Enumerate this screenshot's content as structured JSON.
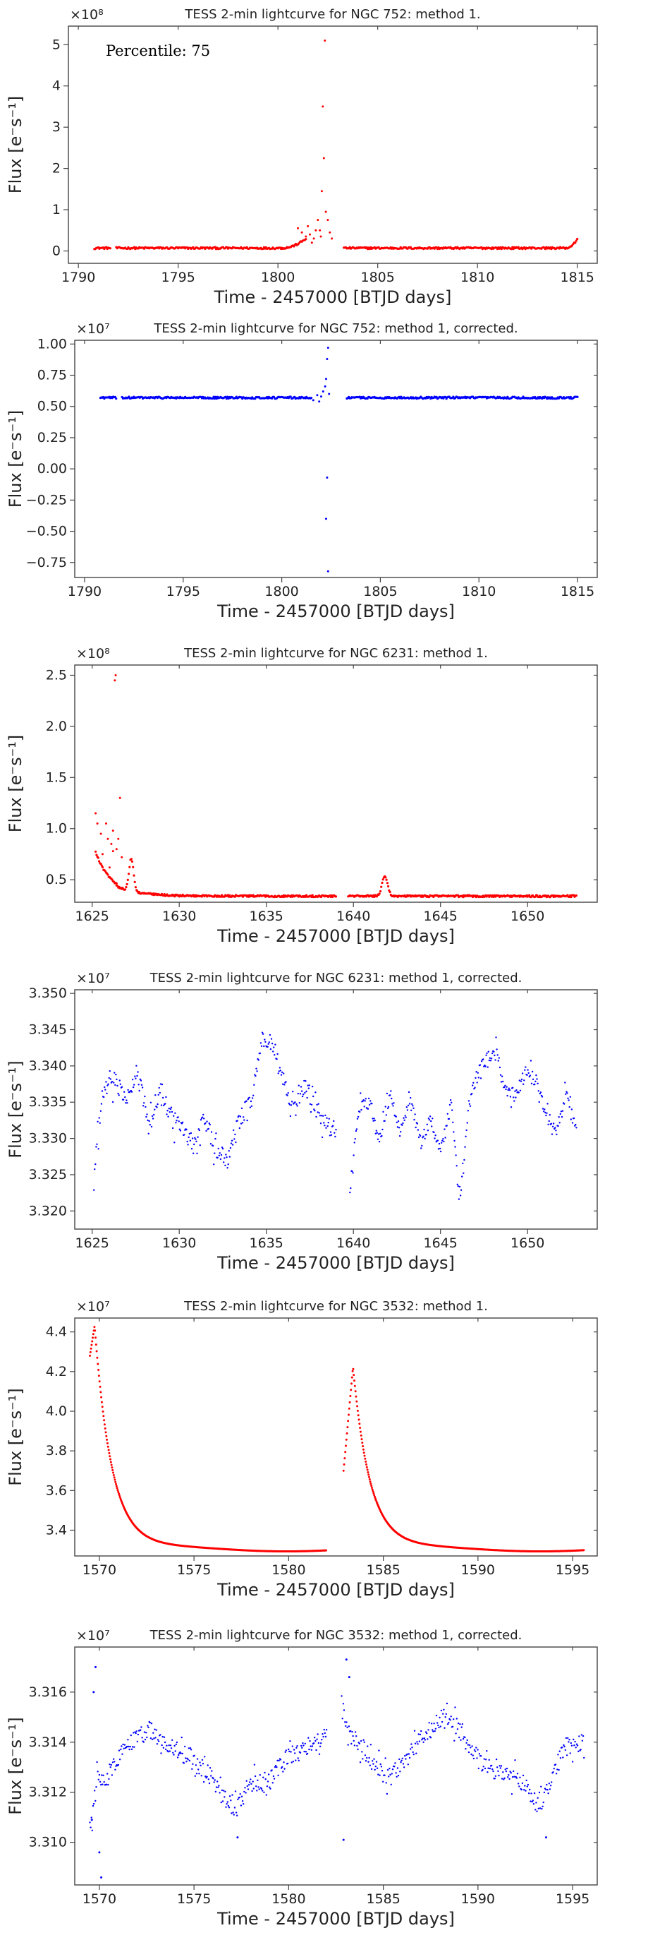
{
  "colors": {
    "method": "#ff0000",
    "corrected": "#0000ff",
    "axes": "#444444"
  },
  "chart_data": [
    {
      "type": "scatter",
      "title": "TESS 2-min lightcurve for NGC 752: method 1.",
      "xlabel": "Time - 2457000 [BTJD days]",
      "ylabel": "Flux [e⁻s⁻¹]",
      "multiplier": "×10⁸",
      "annotation": "Percentile: 75",
      "xlim": [
        1789.5,
        1816.0
      ],
      "ylim": [
        -0.3,
        5.45
      ],
      "xticks": [
        1790,
        1795,
        1800,
        1805,
        1810,
        1815
      ],
      "yticks": [
        0,
        1,
        2,
        3,
        4,
        5
      ],
      "color": "#ff0000",
      "series": [
        {
          "segments": [
            {
              "x0": 1790.8,
              "x1": 1791.6,
              "base": 0.07
            },
            {
              "x0": 1791.9,
              "x1": 1800.2,
              "base": 0.07
            },
            {
              "x0": 1800.2,
              "x1": 1801.4,
              "base": 0.07,
              "rise": 0.23
            },
            {
              "x0": 1803.3,
              "x1": 1814.4,
              "base": 0.07
            },
            {
              "x0": 1814.4,
              "x1": 1815.0,
              "base": 0.07,
              "rise": 0.2
            }
          ],
          "points": [
            [
              1801.0,
              0.55
            ],
            [
              1801.2,
              0.45
            ],
            [
              1801.4,
              0.35
            ],
            [
              1801.5,
              0.6
            ],
            [
              1801.6,
              0.4
            ],
            [
              1801.8,
              0.3
            ],
            [
              1801.9,
              0.5
            ],
            [
              1802.0,
              0.75
            ],
            [
              1802.1,
              0.5
            ],
            [
              1802.2,
              1.45
            ],
            [
              1802.25,
              3.5
            ],
            [
              1802.3,
              2.25
            ],
            [
              1802.35,
              5.1
            ],
            [
              1802.4,
              0.95
            ],
            [
              1802.5,
              0.75
            ],
            [
              1802.6,
              0.45
            ],
            [
              1802.7,
              0.3
            ],
            [
              1801.7,
              0.2
            ],
            [
              1802.15,
              0.35
            ]
          ]
        }
      ]
    },
    {
      "type": "scatter",
      "title": "TESS 2-min lightcurve for NGC 752: method 1, corrected.",
      "xlabel": "Time - 2457000 [BTJD days]",
      "ylabel": "Flux [e⁻s⁻¹]",
      "multiplier": "×10⁷",
      "xlim": [
        1789.5,
        1816.0
      ],
      "ylim": [
        -0.87,
        1.03
      ],
      "xticks": [
        1790,
        1795,
        1800,
        1805,
        1810,
        1815
      ],
      "yticks": [
        -0.75,
        -0.5,
        -0.25,
        0.0,
        0.25,
        0.5,
        0.75,
        1.0
      ],
      "ytick_labels": [
        "−0.75",
        "−0.50",
        "−0.25",
        "0.00",
        "0.25",
        "0.50",
        "0.75",
        "1.00"
      ],
      "color": "#0000ff",
      "series": [
        {
          "segments": [
            {
              "x0": 1790.8,
              "x1": 1791.6,
              "base": 0.57
            },
            {
              "x0": 1791.9,
              "x1": 1801.5,
              "base": 0.57
            },
            {
              "x0": 1803.3,
              "x1": 1815.0,
              "base": 0.57
            }
          ],
          "points": [
            [
              1801.6,
              0.55
            ],
            [
              1801.8,
              0.59
            ],
            [
              1802.0,
              0.58
            ],
            [
              1802.1,
              0.62
            ],
            [
              1802.2,
              0.66
            ],
            [
              1802.25,
              0.72
            ],
            [
              1802.3,
              0.88
            ],
            [
              1802.35,
              0.97
            ],
            [
              1802.3,
              -0.07
            ],
            [
              1802.25,
              -0.4
            ],
            [
              1802.35,
              -0.82
            ],
            [
              1802.4,
              0.6
            ],
            [
              1801.9,
              0.54
            ]
          ]
        }
      ]
    },
    {
      "type": "scatter",
      "title": "TESS 2-min lightcurve for NGC 6231: method 1.",
      "xlabel": "Time - 2457000 [BTJD days]",
      "ylabel": "Flux [e⁻s⁻¹]",
      "multiplier": "×10⁸",
      "xlim": [
        1624.0,
        1654.0
      ],
      "ylim": [
        0.28,
        2.6
      ],
      "xticks": [
        1625,
        1630,
        1635,
        1640,
        1645,
        1650
      ],
      "yticks": [
        0.5,
        1.0,
        1.5,
        2.0,
        2.5
      ],
      "ytick_labels": [
        "0.5",
        "1.0",
        "1.5",
        "2.0",
        "2.5"
      ],
      "color": "#ff0000",
      "series": [
        {
          "segments": [
            {
              "x0": 1625.2,
              "x1": 1626.4,
              "base": 0.35,
              "decay": 0.42,
              "tau": 0.9
            },
            {
              "x0": 1626.4,
              "x1": 1639.0,
              "base": 0.34,
              "decay": 0.1,
              "tau": 1.2,
              "bump": {
                "c": 1627.25,
                "a": 0.32,
                "w": 0.18
              }
            },
            {
              "x0": 1639.7,
              "x1": 1652.8,
              "base": 0.34,
              "bump": {
                "c": 1641.8,
                "a": 0.2,
                "w": 0.22
              }
            }
          ],
          "points": [
            [
              1625.2,
              1.15
            ],
            [
              1625.3,
              1.05
            ],
            [
              1625.5,
              0.95
            ],
            [
              1625.8,
              1.05
            ],
            [
              1625.9,
              0.9
            ],
            [
              1626.1,
              0.85
            ],
            [
              1626.2,
              0.98
            ],
            [
              1626.3,
              2.45
            ],
            [
              1626.35,
              2.5
            ],
            [
              1626.2,
              0.78
            ],
            [
              1626.4,
              0.8
            ],
            [
              1626.6,
              1.3
            ],
            [
              1626.5,
              0.9
            ],
            [
              1626.7,
              0.72
            ],
            [
              1626.0,
              0.62
            ],
            [
              1625.6,
              0.75
            ]
          ]
        }
      ]
    },
    {
      "type": "scatter",
      "title": "TESS 2-min lightcurve for NGC 6231: method 1, corrected.",
      "xlabel": "Time - 2457000 [BTJD days]",
      "ylabel": "Flux [e⁻s⁻¹]",
      "multiplier": "×10⁷",
      "xlim": [
        1624.0,
        1654.0
      ],
      "ylim": [
        3.3175,
        3.3505
      ],
      "xticks": [
        1625,
        1630,
        1635,
        1640,
        1645,
        1650
      ],
      "yticks": [
        3.32,
        3.325,
        3.33,
        3.335,
        3.34,
        3.345,
        3.35
      ],
      "ytick_labels": [
        "3.320",
        "3.325",
        "3.330",
        "3.335",
        "3.340",
        "3.345",
        "3.350"
      ],
      "color": "#0000ff",
      "series": [
        {
          "segments": [
            {
              "x0": 1625.1,
              "x1": 1639.0,
              "n": 320,
              "noise": 0.0022,
              "knots": [
                [
                  1625.1,
                  3.325
                ],
                [
                  1625.6,
                  3.336
                ],
                [
                  1626.2,
                  3.338
                ],
                [
                  1627.0,
                  3.336
                ],
                [
                  1627.6,
                  3.339
                ],
                [
                  1628.3,
                  3.332
                ],
                [
                  1628.9,
                  3.337
                ],
                [
                  1629.5,
                  3.333
                ],
                [
                  1630.2,
                  3.331
                ],
                [
                  1630.8,
                  3.329
                ],
                [
                  1631.4,
                  3.333
                ],
                [
                  1632.2,
                  3.328
                ],
                [
                  1632.8,
                  3.327
                ],
                [
                  1633.4,
                  3.332
                ],
                [
                  1634.2,
                  3.336
                ],
                [
                  1634.8,
                  3.344
                ],
                [
                  1635.4,
                  3.343
                ],
                [
                  1636.0,
                  3.337
                ],
                [
                  1636.6,
                  3.335
                ],
                [
                  1637.3,
                  3.337
                ],
                [
                  1637.9,
                  3.334
                ],
                [
                  1638.5,
                  3.332
                ],
                [
                  1639.0,
                  3.331
                ]
              ]
            },
            {
              "x0": 1639.8,
              "x1": 1652.8,
              "n": 300,
              "noise": 0.0016,
              "knots": [
                [
                  1639.8,
                  3.323
                ],
                [
                  1640.3,
                  3.334
                ],
                [
                  1640.9,
                  3.335
                ],
                [
                  1641.5,
                  3.33
                ],
                [
                  1642.1,
                  3.336
                ],
                [
                  1642.7,
                  3.331
                ],
                [
                  1643.3,
                  3.335
                ],
                [
                  1643.9,
                  3.329
                ],
                [
                  1644.4,
                  3.333
                ],
                [
                  1645.0,
                  3.328
                ],
                [
                  1645.6,
                  3.335
                ],
                [
                  1646.1,
                  3.321
                ],
                [
                  1646.6,
                  3.334
                ],
                [
                  1647.1,
                  3.339
                ],
                [
                  1647.7,
                  3.341
                ],
                [
                  1648.2,
                  3.342
                ],
                [
                  1648.7,
                  3.337
                ],
                [
                  1649.3,
                  3.336
                ],
                [
                  1649.9,
                  3.339
                ],
                [
                  1650.5,
                  3.338
                ],
                [
                  1651.1,
                  3.333
                ],
                [
                  1651.7,
                  3.331
                ],
                [
                  1652.2,
                  3.336
                ],
                [
                  1652.8,
                  3.331
                ]
              ]
            }
          ]
        }
      ]
    },
    {
      "type": "scatter",
      "title": "TESS 2-min lightcurve for NGC 3532: method 1.",
      "xlabel": "Time - 2457000 [BTJD days]",
      "ylabel": "Flux [e⁻s⁻¹]",
      "multiplier": "×10⁷",
      "xlim": [
        1568.7,
        1596.3
      ],
      "ylim": [
        3.27,
        4.47
      ],
      "xticks": [
        1570,
        1575,
        1580,
        1585,
        1590,
        1595
      ],
      "yticks": [
        3.4,
        3.6,
        3.8,
        4.0,
        4.2,
        4.4
      ],
      "ytick_labels": [
        "3.4",
        "3.6",
        "3.8",
        "4.0",
        "4.2",
        "4.4"
      ],
      "color": "#ff0000",
      "series": [
        {
          "segments": [
            {
              "x0": 1569.5,
              "x1": 1582.0,
              "kind": "peak",
              "peak_x": 1569.75,
              "peak": 4.43,
              "start": 4.28,
              "base": 3.305,
              "tau": 0.9,
              "wave": 0.012
            },
            {
              "x0": 1582.9,
              "x1": 1595.6,
              "kind": "peak",
              "peak_x": 1583.4,
              "peak": 4.22,
              "start": 3.7,
              "base": 3.305,
              "tau": 0.9,
              "wave": 0.012
            }
          ]
        }
      ]
    },
    {
      "type": "scatter",
      "title": "TESS 2-min lightcurve for NGC 3532: method 1, corrected.",
      "xlabel": "Time - 2457000 [BTJD days]",
      "ylabel": "Flux [e⁻s⁻¹]",
      "multiplier": "×10⁷",
      "xlim": [
        1568.7,
        1596.3
      ],
      "ylim": [
        3.3083,
        3.3178
      ],
      "xticks": [
        1570,
        1575,
        1580,
        1585,
        1590,
        1595
      ],
      "yticks": [
        3.31,
        3.312,
        3.314,
        3.316
      ],
      "ytick_labels": [
        "3.310",
        "3.312",
        "3.314",
        "3.316"
      ],
      "color": "#0000ff",
      "series": [
        {
          "segments": [
            {
              "x0": 1569.5,
              "x1": 1582.0,
              "n": 300,
              "noise": 0.0006,
              "knots": [
                [
                  1569.5,
                  3.3105
                ],
                [
                  1569.9,
                  3.3125
                ],
                [
                  1570.5,
                  3.3125
                ],
                [
                  1571.2,
                  3.3138
                ],
                [
                  1572.0,
                  3.3142
                ],
                [
                  1572.8,
                  3.3145
                ],
                [
                  1573.5,
                  3.3139
                ],
                [
                  1574.3,
                  3.3136
                ],
                [
                  1575.0,
                  3.3133
                ],
                [
                  1575.8,
                  3.3127
                ],
                [
                  1576.5,
                  3.3118
                ],
                [
                  1577.2,
                  3.3113
                ],
                [
                  1578.0,
                  3.3124
                ],
                [
                  1578.8,
                  3.3123
                ],
                [
                  1579.6,
                  3.3131
                ],
                [
                  1580.3,
                  3.3136
                ],
                [
                  1581.0,
                  3.3138
                ],
                [
                  1582.0,
                  3.3142
                ]
              ]
            },
            {
              "x0": 1582.8,
              "x1": 1595.6,
              "n": 300,
              "noise": 0.0006,
              "knots": [
                [
                  1582.8,
                  3.3155
                ],
                [
                  1583.3,
                  3.3143
                ],
                [
                  1583.9,
                  3.3138
                ],
                [
                  1584.6,
                  3.313
                ],
                [
                  1585.3,
                  3.3125
                ],
                [
                  1586.0,
                  3.3131
                ],
                [
                  1586.7,
                  3.3138
                ],
                [
                  1587.4,
                  3.3145
                ],
                [
                  1588.1,
                  3.315
                ],
                [
                  1588.8,
                  3.3148
                ],
                [
                  1589.5,
                  3.3139
                ],
                [
                  1590.2,
                  3.3131
                ],
                [
                  1591.0,
                  3.3128
                ],
                [
                  1591.8,
                  3.3127
                ],
                [
                  1592.5,
                  3.3123
                ],
                [
                  1593.2,
                  3.3113
                ],
                [
                  1593.9,
                  3.3126
                ],
                [
                  1594.6,
                  3.3138
                ],
                [
                  1595.6,
                  3.314
                ]
              ]
            }
          ],
          "points": [
            [
              1569.6,
              3.3109
            ],
            [
              1569.7,
              3.316
            ],
            [
              1569.8,
              3.317
            ],
            [
              1570.1,
              3.3086
            ],
            [
              1570.0,
              3.3096
            ],
            [
              1582.9,
              3.3101
            ],
            [
              1583.05,
              3.3173
            ],
            [
              1583.2,
              3.3166
            ],
            [
              1577.3,
              3.3102
            ],
            [
              1593.6,
              3.3102
            ]
          ]
        }
      ]
    }
  ]
}
